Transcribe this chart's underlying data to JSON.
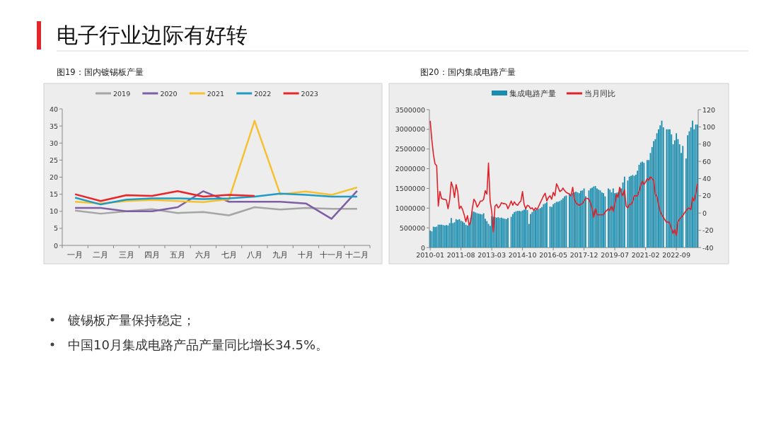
{
  "chart_data": [
    {
      "type": "line",
      "title": "图19：国内镀锡板产量",
      "categories": [
        "一月",
        "二月",
        "三月",
        "四月",
        "五月",
        "六月",
        "七月",
        "八月",
        "九月",
        "十月",
        "十一月",
        "十二月"
      ],
      "ylim": [
        0,
        40
      ],
      "yticks": [
        0,
        5,
        10,
        15,
        20,
        25,
        30,
        35,
        40
      ],
      "legend": "top",
      "series": [
        {
          "name": "2019",
          "color": "#a5a5a5",
          "values": [
            10.2,
            9.3,
            10,
            10.6,
            9.5,
            9.8,
            8.8,
            11.2,
            10.5,
            11,
            10.7,
            10.7
          ]
        },
        {
          "name": "2020",
          "color": "#7e5fa4",
          "values": [
            11,
            11,
            10,
            10,
            11.2,
            15.9,
            12.8,
            12.8,
            12.8,
            12.3,
            7.8,
            16
          ]
        },
        {
          "name": "2021",
          "color": "#f5c131",
          "values": [
            12.8,
            12.3,
            13,
            13.3,
            13,
            12.7,
            13.5,
            36.5,
            15,
            15.8,
            14.8,
            17
          ]
        },
        {
          "name": "2022",
          "color": "#1f9bc4",
          "values": [
            14,
            12,
            13.4,
            13.8,
            13.8,
            13.6,
            13.8,
            14.3,
            15.2,
            14.8,
            14.3,
            14.3
          ]
        },
        {
          "name": "2023",
          "color": "#e8262a",
          "values": [
            15,
            13,
            14.7,
            14.5,
            15.9,
            14.3,
            14.8,
            14.5,
            null,
            null,
            null,
            null
          ]
        }
      ]
    },
    {
      "type": "bar",
      "title": "图20：国内集成电路产量",
      "legend": "top",
      "xlim": [
        "2010-01",
        "2023-10"
      ],
      "xticks": [
        "2010-01",
        "2011-08",
        "2013-03",
        "2014-10",
        "2016-05",
        "2017-12",
        "2019-07",
        "2021-02",
        "2022-09"
      ],
      "ylim": [
        0,
        3500000
      ],
      "yticks": [
        0,
        500000,
        1000000,
        1500000,
        2000000,
        2500000,
        3000000,
        3500000
      ],
      "y2lim": [
        -40,
        120
      ],
      "y2ticks": [
        -40,
        -20,
        0,
        20,
        40,
        60,
        80,
        100,
        120
      ],
      "x": [
        "2010-01",
        "2010-02",
        "2010-03",
        "2010-04",
        "2010-05",
        "2010-06",
        "2010-07",
        "2010-08",
        "2010-09",
        "2010-10",
        "2010-11",
        "2010-12",
        "2011-01",
        "2011-02",
        "2011-03",
        "2011-04",
        "2011-05",
        "2011-06",
        "2011-07",
        "2011-08",
        "2011-09",
        "2011-10",
        "2011-11",
        "2011-12",
        "2012-01",
        "2012-02",
        "2012-03",
        "2012-04",
        "2012-05",
        "2012-06",
        "2012-07",
        "2012-08",
        "2012-09",
        "2012-10",
        "2012-11",
        "2012-12",
        "2013-01",
        "2013-02",
        "2013-03",
        "2013-04",
        "2013-05",
        "2013-06",
        "2013-07",
        "2013-08",
        "2013-09",
        "2013-10",
        "2013-11",
        "2013-12",
        "2014-01",
        "2014-02",
        "2014-03",
        "2014-04",
        "2014-05",
        "2014-06",
        "2014-07",
        "2014-08",
        "2014-09",
        "2014-10",
        "2014-11",
        "2014-12",
        "2015-01",
        "2015-02",
        "2015-03",
        "2015-04",
        "2015-05",
        "2015-06",
        "2015-07",
        "2015-08",
        "2015-09",
        "2015-10",
        "2015-11",
        "2015-12",
        "2016-01",
        "2016-02",
        "2016-03",
        "2016-04",
        "2016-05",
        "2016-06",
        "2016-07",
        "2016-08",
        "2016-09",
        "2016-10",
        "2016-11",
        "2016-12",
        "2017-01",
        "2017-02",
        "2017-03",
        "2017-04",
        "2017-05",
        "2017-06",
        "2017-07",
        "2017-08",
        "2017-09",
        "2017-10",
        "2017-11",
        "2017-12",
        "2018-01",
        "2018-02",
        "2018-03",
        "2018-04",
        "2018-05",
        "2018-06",
        "2018-07",
        "2018-08",
        "2018-09",
        "2018-10",
        "2018-11",
        "2018-12",
        "2019-01",
        "2019-02",
        "2019-03",
        "2019-04",
        "2019-05",
        "2019-06",
        "2019-07",
        "2019-08",
        "2019-09",
        "2019-10",
        "2019-11",
        "2019-12",
        "2020-01",
        "2020-02",
        "2020-03",
        "2020-04",
        "2020-05",
        "2020-06",
        "2020-07",
        "2020-08",
        "2020-09",
        "2020-10",
        "2020-11",
        "2020-12",
        "2021-01",
        "2021-02",
        "2021-03",
        "2021-04",
        "2021-05",
        "2021-06",
        "2021-07",
        "2021-08",
        "2021-09",
        "2021-10",
        "2021-11",
        "2021-12",
        "2022-01",
        "2022-02",
        "2022-03",
        "2022-04",
        "2022-05",
        "2022-06",
        "2022-07",
        "2022-08",
        "2022-09",
        "2022-10",
        "2022-11",
        "2022-12",
        "2023-01",
        "2023-02",
        "2023-03",
        "2023-04",
        "2023-05",
        "2023-06",
        "2023-07",
        "2023-08",
        "2023-09",
        "2023-10"
      ],
      "series": [
        {
          "name": "集成电路产量",
          "type": "bar",
          "color": "#1a8cad",
          "values": [
            430000,
            410000,
            530000,
            520000,
            530000,
            580000,
            580000,
            580000,
            570000,
            560000,
            570000,
            560000,
            620000,
            750000,
            620000,
            640000,
            720000,
            700000,
            720000,
            680000,
            660000,
            630000,
            580000,
            560000,
            600000,
            750000,
            920000,
            910000,
            890000,
            870000,
            860000,
            850000,
            840000,
            870000,
            730000,
            670000,
            600000,
            550000,
            800000,
            780000,
            770000,
            760000,
            770000,
            750000,
            760000,
            740000,
            730000,
            720000,
            750000,
            null,
            780000,
            850000,
            900000,
            920000,
            930000,
            930000,
            920000,
            940000,
            960000,
            1020000,
            950000,
            600000,
            850000,
            900000,
            940000,
            960000,
            970000,
            980000,
            1000000,
            1030000,
            1100000,
            1120000,
            1150000,
            null,
            1040000,
            1030000,
            1100000,
            1130000,
            1160000,
            1160000,
            1180000,
            1210000,
            1250000,
            1300000,
            1320000,
            null,
            1370000,
            1350000,
            1380000,
            1400000,
            1420000,
            1400000,
            1380000,
            1440000,
            1450000,
            1500000,
            1300000,
            null,
            1450000,
            1500000,
            1520000,
            1550000,
            1560000,
            1500000,
            1470000,
            1450000,
            1400000,
            1380000,
            1300000,
            null,
            1500000,
            1470000,
            1400000,
            1500000,
            1380000,
            1390000,
            1400000,
            1500000,
            1500000,
            1650000,
            1800000,
            null,
            1700000,
            1800000,
            1820000,
            1840000,
            1820000,
            1850000,
            1950000,
            2100000,
            2160000,
            2180000,
            2150000,
            null,
            2220000,
            2220000,
            2400000,
            2550000,
            2700000,
            2750000,
            2900000,
            3000000,
            3100000,
            3220000,
            3050000,
            null,
            3000000,
            3000000,
            3000000,
            2870000,
            2620000,
            2720000,
            2900000,
            2750000,
            2620000,
            2400000,
            2580000,
            null,
            2260000,
            2850000,
            2950000,
            3050000,
            3220000,
            3000000,
            3120000,
            3120000
          ]
        },
        {
          "name": "当月同比",
          "type": "line",
          "axis": "y2",
          "color": "#e0212a",
          "values": [
            107,
            85,
            68,
            57,
            55,
            8,
            25,
            17,
            16,
            16,
            15,
            5,
            15,
            36,
            30,
            18,
            33,
            25,
            5,
            8,
            4,
            -2,
            -10,
            -3,
            -14,
            -10,
            5,
            16,
            13,
            7,
            10,
            14,
            14,
            16,
            26,
            22,
            58,
            14,
            2,
            -22,
            8,
            10,
            6,
            8,
            12,
            11,
            11,
            10,
            5,
            9,
            14,
            9,
            13,
            10,
            9,
            12,
            14,
            25,
            10,
            5,
            9,
            8,
            5,
            6,
            3,
            6,
            4,
            8,
            12,
            16,
            20,
            23,
            14,
            18,
            20,
            16,
            24,
            20,
            34,
            30,
            25,
            26,
            29,
            26,
            24,
            23,
            22,
            20,
            30,
            16,
            12,
            10,
            9,
            10,
            11,
            14,
            17,
            17,
            16,
            12,
            5,
            -5,
            5,
            -2,
            -2,
            -2,
            -2,
            -2,
            1,
            3,
            5,
            3,
            8,
            2,
            10,
            22,
            18,
            30,
            24,
            20,
            27,
            8,
            6,
            10,
            10,
            13,
            20,
            20,
            20,
            25,
            32,
            37,
            33,
            36,
            40,
            38,
            42,
            40,
            38,
            22,
            19,
            10,
            2,
            -2,
            -5,
            -8,
            -11,
            -10,
            -12,
            -18,
            -24,
            -19,
            -26,
            -10,
            -7,
            -5,
            -3,
            0,
            3,
            5,
            6,
            4,
            18,
            14,
            22,
            34
          ]
        }
      ]
    },
    {
      "type": "other",
      "title": "电子行业边际有好转",
      "annotations": [
        "镀锡板产量保持稳定；",
        "中国10月集成电路产品产量同比增长34.5%。"
      ]
    }
  ]
}
